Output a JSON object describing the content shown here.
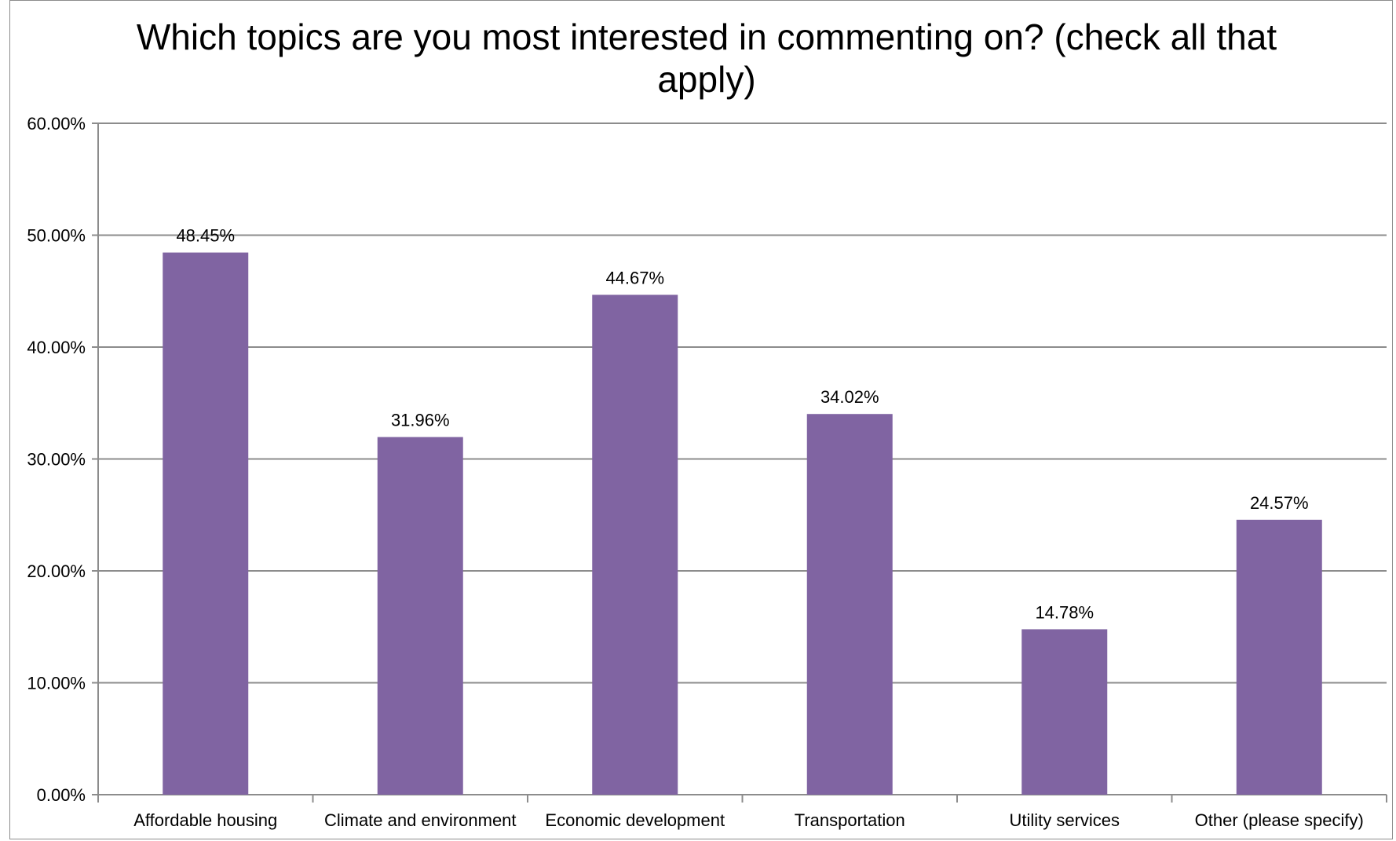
{
  "chart_data": {
    "type": "bar",
    "title": "Which topics are you most interested in commenting on? (check all that apply)",
    "xlabel": "",
    "ylabel": "",
    "ylim": [
      0,
      60
    ],
    "y_ticks": [
      "0.00%",
      "10.00%",
      "20.00%",
      "30.00%",
      "40.00%",
      "50.00%",
      "60.00%"
    ],
    "grid": true,
    "categories": [
      "Affordable housing",
      "Climate and environment",
      "Economic development",
      "Transportation",
      "Utility services",
      "Other (please specify)"
    ],
    "values": [
      48.45,
      31.96,
      44.67,
      34.02,
      14.78,
      24.57
    ],
    "data_labels": [
      "48.45%",
      "31.96%",
      "44.67%",
      "34.02%",
      "14.78%",
      "24.57%"
    ],
    "bar_color": "#8064a2"
  }
}
